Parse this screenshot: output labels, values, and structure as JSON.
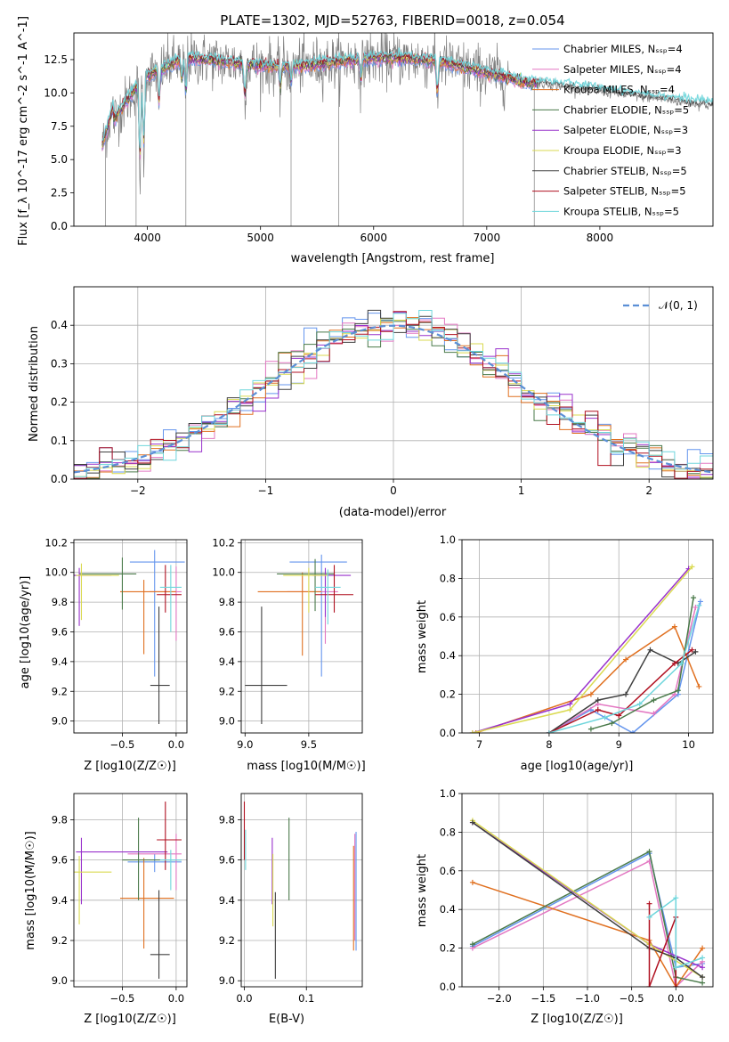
{
  "chart_data": [
    {
      "id": "spectrum",
      "type": "line",
      "title": "PLATE=1302, MJD=52763, FIBERID=0018, z=0.054",
      "xlabel": "wavelength [Angstrom, rest frame]",
      "ylabel": "Flux [f_λ 10^-17 erg cm^-2 s^-1 A^-1]",
      "xlim": [
        3350,
        9000
      ],
      "ylim": [
        0,
        14.5
      ],
      "xticks": [
        "4000",
        "5000",
        "6000",
        "7000",
        "8000"
      ],
      "yticks": [
        "0.0",
        "2.5",
        "5.0",
        "7.5",
        "10.0",
        "12.5"
      ],
      "legend_position": "right",
      "legend": [
        {
          "name": "Chabrier MILES, N_SSP=4",
          "color": "#6495ed"
        },
        {
          "name": "Salpeter MILES, N_SSP=4",
          "color": "#e377c2"
        },
        {
          "name": "Kroupa MILES, N_SSP=4",
          "color": "#e07020"
        },
        {
          "name": "Chabrier ELODIE, N_SSP=5",
          "color": "#4a7a4a"
        },
        {
          "name": "Salpeter ELODIE, N_SSP=3",
          "color": "#9932cc"
        },
        {
          "name": "Kroupa ELODIE, N_SSP=3",
          "color": "#dada50"
        },
        {
          "name": "Chabrier STELIB, N_SSP=5",
          "color": "#404040"
        },
        {
          "name": "Salpeter STELIB, N_SSP=5",
          "color": "#b01020"
        },
        {
          "name": "Kroupa STELIB, N_SSP=5",
          "color": "#6fd6dc"
        }
      ]
    },
    {
      "id": "residual-histogram",
      "type": "histogram",
      "xlabel": "(data-model)/error",
      "ylabel": "Normed distribution",
      "xlim": [
        -2.5,
        2.5
      ],
      "ylim": [
        0,
        0.5
      ],
      "xticks": [
        "−2",
        "−1",
        "0",
        "1",
        "2"
      ],
      "yticks": [
        "0.0",
        "0.1",
        "0.2",
        "0.3",
        "0.4"
      ],
      "grid": true,
      "legend": [
        {
          "name": "𝒩(0, 1)",
          "color": "#5b8fd6",
          "style": "dashed"
        }
      ],
      "legend_position": "top-right"
    },
    {
      "id": "age-vs-Z",
      "type": "errorbar",
      "xlabel": "Z [log10(Z/Z☉)]",
      "ylabel": "age  [log10(age/yr)]",
      "xlim": [
        -0.95,
        0.1
      ],
      "ylim": [
        8.92,
        10.22
      ],
      "xticks": [
        "−0.5",
        "0.0"
      ],
      "yticks": [
        "9.0",
        "9.2",
        "9.4",
        "9.6",
        "9.8",
        "10.0",
        "10.2"
      ],
      "grid": true,
      "points": [
        {
          "x": -0.2,
          "y": 10.07,
          "xerr": [
            0.23,
            0.28
          ],
          "yerr": [
            0.77,
            0.08
          ],
          "color": "#6495ed"
        },
        {
          "x": 0.0,
          "y": 9.87,
          "xerr": [
            0.25,
            0.05
          ],
          "yerr": [
            0.33,
            0.17
          ],
          "color": "#e377c2"
        },
        {
          "x": -0.3,
          "y": 9.87,
          "xerr": [
            0.22,
            0.3
          ],
          "yerr": [
            0.42,
            0.08
          ],
          "color": "#e07020"
        },
        {
          "x": -0.5,
          "y": 9.99,
          "xerr": [
            0.4,
            0.13
          ],
          "yerr": [
            0.24,
            0.11
          ],
          "color": "#4a7a4a"
        },
        {
          "x": -0.9,
          "y": 9.98,
          "xerr": [
            0.05,
            0.3
          ],
          "yerr": [
            0.34,
            0.05
          ],
          "color": "#9932cc"
        },
        {
          "x": -0.88,
          "y": 9.98,
          "xerr": [
            0.05,
            0.35
          ],
          "yerr": [
            0.3,
            0.08
          ],
          "color": "#dada50"
        },
        {
          "x": -0.16,
          "y": 9.24,
          "xerr": [
            0.08,
            0.1
          ],
          "yerr": [
            0.26,
            0.53
          ],
          "color": "#404040"
        },
        {
          "x": -0.1,
          "y": 9.85,
          "xerr": [
            0.08,
            0.15
          ],
          "yerr": [
            0.12,
            0.2
          ],
          "color": "#b01020"
        },
        {
          "x": -0.05,
          "y": 9.9,
          "xerr": [
            0.1,
            0.1
          ],
          "yerr": [
            0.3,
            0.15
          ],
          "color": "#6fd6dc"
        }
      ]
    },
    {
      "id": "age-vs-mass",
      "type": "errorbar",
      "xlabel": "mass [log10(M/M☉)]",
      "ylabel": "",
      "xlim": [
        8.97,
        9.92
      ],
      "ylim": [
        8.92,
        10.22
      ],
      "xticks": [
        "9.0",
        "9.5"
      ],
      "yticks": [
        "9.0",
        "9.2",
        "9.4",
        "9.6",
        "9.8",
        "10.0",
        "10.2"
      ],
      "grid": true,
      "points": [
        {
          "x": 9.6,
          "y": 10.07,
          "xerr": [
            0.25,
            0.2
          ],
          "yerr": [
            0.77,
            0.05
          ],
          "color": "#6495ed"
        },
        {
          "x": 9.63,
          "y": 9.87,
          "xerr": [
            0.3,
            0.1
          ],
          "yerr": [
            0.35,
            0.12
          ],
          "color": "#e377c2"
        },
        {
          "x": 9.45,
          "y": 9.87,
          "xerr": [
            0.35,
            0.15
          ],
          "yerr": [
            0.43,
            0.13
          ],
          "color": "#e07020"
        },
        {
          "x": 9.55,
          "y": 9.99,
          "xerr": [
            0.3,
            0.15
          ],
          "yerr": [
            0.25,
            0.1
          ],
          "color": "#4a7a4a"
        },
        {
          "x": 9.63,
          "y": 9.98,
          "xerr": [
            0.1,
            0.2
          ],
          "yerr": [
            0.28,
            0.05
          ],
          "color": "#9932cc"
        },
        {
          "x": 9.5,
          "y": 9.98,
          "xerr": [
            0.2,
            0.15
          ],
          "yerr": [
            0.25,
            0.05
          ],
          "color": "#dada50"
        },
        {
          "x": 9.13,
          "y": 9.24,
          "xerr": [
            0.13,
            0.2
          ],
          "yerr": [
            0.26,
            0.53
          ],
          "color": "#404040"
        },
        {
          "x": 9.7,
          "y": 9.85,
          "xerr": [
            0.15,
            0.15
          ],
          "yerr": [
            0.12,
            0.2
          ],
          "color": "#b01020"
        },
        {
          "x": 9.65,
          "y": 9.9,
          "xerr": [
            0.1,
            0.1
          ],
          "yerr": [
            0.25,
            0.12
          ],
          "color": "#6fd6dc"
        }
      ]
    },
    {
      "id": "weight-vs-age",
      "type": "line",
      "xlabel": "age  [log10(age/yr)]",
      "ylabel": "mass weight",
      "xlim": [
        6.75,
        10.35
      ],
      "ylim": [
        0,
        1.0
      ],
      "xticks": [
        "7",
        "8",
        "9",
        "10"
      ],
      "yticks": [
        "0.0",
        "0.2",
        "0.4",
        "0.6",
        "0.8",
        "1.0"
      ],
      "grid": true,
      "series": [
        {
          "color": "#6495ed",
          "x": [
            8.0,
            8.6,
            9.2,
            9.85,
            10.17
          ],
          "y": [
            0.0,
            0.12,
            0.0,
            0.2,
            0.68
          ]
        },
        {
          "color": "#e377c2",
          "x": [
            8.0,
            8.7,
            9.5,
            9.8,
            10.1
          ],
          "y": [
            0.0,
            0.15,
            0.1,
            0.2,
            0.65
          ]
        },
        {
          "color": "#e07020",
          "x": [
            6.95,
            8.6,
            9.1,
            9.8,
            10.15
          ],
          "y": [
            0.0,
            0.2,
            0.38,
            0.55,
            0.24
          ]
        },
        {
          "color": "#4a7a4a",
          "x": [
            8.6,
            8.9,
            9.5,
            9.85,
            10.07
          ],
          "y": [
            0.02,
            0.05,
            0.17,
            0.22,
            0.7
          ]
        },
        {
          "color": "#9932cc",
          "x": [
            6.9,
            8.3,
            10.0
          ],
          "y": [
            0.0,
            0.15,
            0.85
          ]
        },
        {
          "color": "#dada50",
          "x": [
            6.9,
            8.3,
            10.05
          ],
          "y": [
            0.0,
            0.12,
            0.86
          ]
        },
        {
          "color": "#404040",
          "x": [
            8.0,
            8.7,
            9.1,
            9.45,
            9.85,
            10.1
          ],
          "y": [
            0.0,
            0.17,
            0.2,
            0.43,
            0.36,
            0.42
          ]
        },
        {
          "color": "#b01020",
          "x": [
            8.0,
            8.7,
            9.0,
            9.8,
            10.05
          ],
          "y": [
            0.0,
            0.12,
            0.09,
            0.36,
            0.43
          ]
        },
        {
          "color": "#6fd6dc",
          "x": [
            8.0,
            8.8,
            9.3,
            9.9,
            10.15
          ],
          "y": [
            0.0,
            0.08,
            0.15,
            0.36,
            0.66
          ]
        }
      ]
    },
    {
      "id": "mass-vs-Z",
      "type": "errorbar",
      "xlabel": "Z [log10(Z/Z☉)]",
      "ylabel": "mass [log10(M/M☉)]",
      "xlim": [
        -0.95,
        0.1
      ],
      "ylim": [
        8.97,
        9.93
      ],
      "xticks": [
        "−0.5",
        "0.0"
      ],
      "yticks": [
        "9.0",
        "9.2",
        "9.4",
        "9.6",
        "9.8"
      ],
      "grid": true,
      "points": [
        {
          "x": -0.2,
          "y": 9.59,
          "xerr": [
            0.25,
            0.25
          ],
          "yerr": [
            0.05,
            0.04
          ],
          "color": "#6495ed"
        },
        {
          "x": 0.0,
          "y": 9.63,
          "xerr": [
            0.45,
            0.05
          ],
          "yerr": [
            0.18,
            0.1
          ],
          "color": "#e377c2"
        },
        {
          "x": -0.3,
          "y": 9.41,
          "xerr": [
            0.22,
            0.28
          ],
          "yerr": [
            0.25,
            0.2
          ],
          "color": "#e07020"
        },
        {
          "x": -0.35,
          "y": 9.6,
          "xerr": [
            0.15,
            0.4
          ],
          "yerr": [
            0.2,
            0.21
          ],
          "color": "#4a7a4a"
        },
        {
          "x": -0.88,
          "y": 9.64,
          "xerr": [
            0.05,
            0.8
          ],
          "yerr": [
            0.26,
            0.07
          ],
          "color": "#9932cc"
        },
        {
          "x": -0.9,
          "y": 9.54,
          "xerr": [
            0.05,
            0.3
          ],
          "yerr": [
            0.26,
            0.08
          ],
          "color": "#dada50"
        },
        {
          "x": -0.16,
          "y": 9.13,
          "xerr": [
            0.08,
            0.1
          ],
          "yerr": [
            0.12,
            0.32
          ],
          "color": "#404040"
        },
        {
          "x": -0.1,
          "y": 9.7,
          "xerr": [
            0.08,
            0.15
          ],
          "yerr": [
            0.15,
            0.19
          ],
          "color": "#b01020"
        },
        {
          "x": -0.05,
          "y": 9.6,
          "xerr": [
            0.1,
            0.1
          ],
          "yerr": [
            0.15,
            0.05
          ],
          "color": "#6fd6dc"
        }
      ]
    },
    {
      "id": "mass-vs-EBV",
      "type": "errorbar",
      "xlabel": "E(B-V)",
      "ylabel": "",
      "xlim": [
        -0.005,
        0.19
      ],
      "ylim": [
        8.97,
        9.93
      ],
      "xticks": [
        "0.0",
        "0.1"
      ],
      "yticks": [
        "9.0",
        "9.2",
        "9.4",
        "9.6",
        "9.8"
      ],
      "grid": true,
      "points": [
        {
          "x": 0.18,
          "y": 9.6,
          "yerr": [
            0.45,
            0.14
          ],
          "color": "#6495ed"
        },
        {
          "x": 0.178,
          "y": 9.55,
          "yerr": [
            0.35,
            0.18
          ],
          "color": "#e377c2"
        },
        {
          "x": 0.176,
          "y": 9.4,
          "yerr": [
            0.25,
            0.27
          ],
          "color": "#e07020"
        },
        {
          "x": 0.072,
          "y": 9.6,
          "yerr": [
            0.2,
            0.21
          ],
          "color": "#4a7a4a"
        },
        {
          "x": 0.045,
          "y": 9.55,
          "yerr": [
            0.17,
            0.16
          ],
          "color": "#9932cc"
        },
        {
          "x": 0.046,
          "y": 9.45,
          "yerr": [
            0.18,
            0.18
          ],
          "color": "#dada50"
        },
        {
          "x": 0.05,
          "y": 9.23,
          "yerr": [
            0.22,
            0.21
          ],
          "color": "#404040"
        },
        {
          "x": 0.0,
          "y": 9.7,
          "yerr": [
            0.1,
            0.19
          ],
          "color": "#b01020"
        },
        {
          "x": 0.002,
          "y": 9.65,
          "yerr": [
            0.1,
            0.1
          ],
          "color": "#6fd6dc"
        }
      ]
    },
    {
      "id": "weight-vs-Z",
      "type": "line",
      "xlabel": "Z [log10(Z/Z☉)]",
      "ylabel": "mass weight",
      "xlim": [
        -2.42,
        0.42
      ],
      "ylim": [
        0,
        1.0
      ],
      "xticks": [
        "−2.0",
        "−1.5",
        "−1.0",
        "−0.5",
        "0.0"
      ],
      "yticks": [
        "0.0",
        "0.2",
        "0.4",
        "0.6",
        "0.8",
        "1.0"
      ],
      "grid": true,
      "series": [
        {
          "color": "#6495ed",
          "x": [
            -2.3,
            -0.3,
            0.0,
            0.3
          ],
          "y": [
            0.21,
            0.69,
            0.1,
            0.12
          ]
        },
        {
          "color": "#e377c2",
          "x": [
            -2.3,
            -0.3,
            0.0,
            0.3
          ],
          "y": [
            0.2,
            0.65,
            0.0,
            0.13
          ]
        },
        {
          "color": "#e07020",
          "x": [
            -2.3,
            -0.3,
            0.0,
            0.3
          ],
          "y": [
            0.54,
            0.24,
            0.0,
            0.2
          ]
        },
        {
          "color": "#4a7a4a",
          "x": [
            -2.3,
            -0.3,
            0.0,
            0.3
          ],
          "y": [
            0.22,
            0.7,
            0.05,
            0.02
          ]
        },
        {
          "color": "#9932cc",
          "x": [
            -2.3,
            -0.3,
            0.3
          ],
          "y": [
            0.85,
            0.22,
            0.1
          ]
        },
        {
          "color": "#dada50",
          "x": [
            -2.3,
            -0.3,
            0.3
          ],
          "y": [
            0.86,
            0.22,
            0.05
          ]
        },
        {
          "color": "#404040",
          "x": [
            -2.3,
            -0.3,
            0.0,
            0.3
          ],
          "y": [
            0.85,
            0.2,
            0.15,
            0.05
          ]
        },
        {
          "color": "#b01020",
          "x": [
            -0.3,
            -0.3,
            0.0,
            0.0
          ],
          "y": [
            0.43,
            0.0,
            0.36,
            0.0
          ]
        },
        {
          "color": "#6fd6dc",
          "x": [
            -0.3,
            0.0,
            0.0,
            0.3
          ],
          "y": [
            0.36,
            0.46,
            0.1,
            0.15
          ]
        }
      ]
    }
  ]
}
